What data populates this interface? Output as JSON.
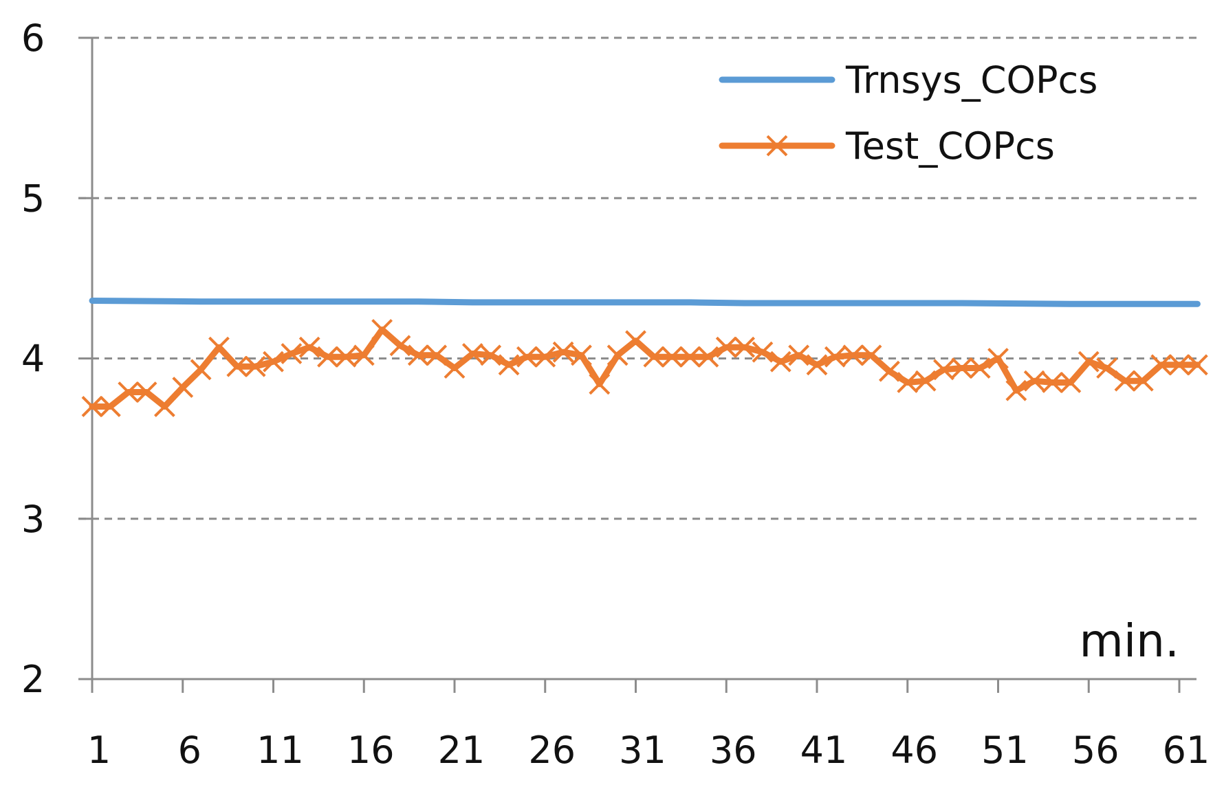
{
  "chart_data": {
    "type": "line",
    "title": "",
    "xlabel": "min.",
    "ylabel": "",
    "xlim": [
      1,
      62
    ],
    "ylim": [
      2,
      6
    ],
    "yticks": [
      "2",
      "3",
      "4",
      "5",
      "6"
    ],
    "xticks": [
      "1",
      "6",
      "11",
      "16",
      "21",
      "26",
      "31",
      "36",
      "41",
      "46",
      "51",
      "56",
      "61"
    ],
    "grid": true,
    "legend_position": "top-right",
    "series": [
      {
        "name": "Trnsys_COPcs",
        "color": "#5b9bd5",
        "marker": "none",
        "x": [
          1,
          7,
          13,
          19,
          22,
          28,
          34,
          37,
          43,
          49,
          55,
          62
        ],
        "y": [
          4.36,
          4.355,
          4.355,
          4.355,
          4.35,
          4.35,
          4.35,
          4.345,
          4.345,
          4.345,
          4.34,
          4.34
        ]
      },
      {
        "name": "Test_COPcs",
        "color": "#ed7d31",
        "marker": "x",
        "x": [
          1,
          2,
          3,
          4,
          5,
          6,
          7,
          8,
          9,
          10,
          11,
          12,
          13,
          14,
          15,
          16,
          17,
          18,
          19,
          20,
          21,
          22,
          23,
          24,
          25,
          26,
          27,
          28,
          29,
          30,
          31,
          32,
          33,
          34,
          35,
          36,
          37,
          38,
          39,
          40,
          41,
          42,
          43,
          44,
          45,
          46,
          47,
          48,
          49,
          50,
          51,
          52,
          53,
          54,
          55,
          56,
          57,
          58,
          59,
          60,
          61,
          62
        ],
        "y": [
          3.7,
          3.7,
          3.79,
          3.79,
          3.7,
          3.82,
          3.93,
          4.07,
          3.95,
          3.95,
          3.98,
          4.03,
          4.07,
          4.01,
          4.01,
          4.02,
          4.18,
          4.08,
          4.02,
          4.02,
          3.94,
          4.03,
          4.02,
          3.96,
          4.01,
          4.01,
          4.04,
          4.02,
          3.84,
          4.02,
          4.11,
          4.01,
          4.01,
          4.01,
          4.01,
          4.07,
          4.07,
          4.04,
          3.98,
          4.02,
          3.96,
          4.01,
          4.02,
          4.02,
          3.92,
          3.85,
          3.86,
          3.93,
          3.94,
          3.94,
          4.0,
          3.8,
          3.86,
          3.85,
          3.85,
          3.98,
          3.94,
          3.86,
          3.86,
          3.96,
          3.96,
          3.96
        ]
      }
    ]
  }
}
